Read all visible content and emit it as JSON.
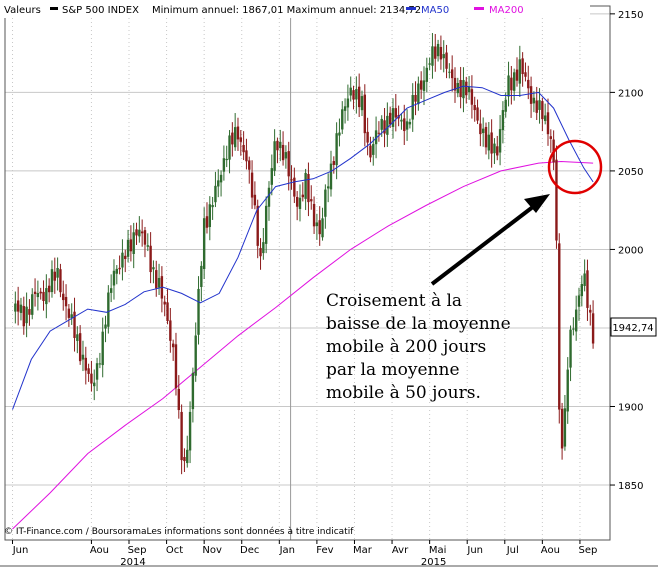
{
  "header": {
    "label": "Valeurs",
    "series_label": "S&P 500 INDEX",
    "minmax_text": "Minimum annuel: 1867,01 Maximum annuel: 2134,72",
    "ma50_label": "MA50",
    "ma200_label": "MA200"
  },
  "footer": {
    "source": "© IT-Finance.com / BoursoramaLes informations sont données à titre indicatif"
  },
  "annotation": {
    "lines": [
      "Croisement à la",
      "baisse de la moyenne",
      "mobile à 200 jours",
      "par la moyenne",
      "mobile à 50 jours."
    ]
  },
  "last_price_label": "1942,74",
  "chart_data": {
    "type": "candlestick",
    "title": "",
    "xlabel": "",
    "ylabel": "",
    "ylim": [
      1815,
      2155
    ],
    "y_ticks": [
      1850,
      1900,
      1950,
      2000,
      2050,
      2100,
      2150
    ],
    "y_tick_labels": [
      "1850",
      "1900",
      "1950",
      "2000",
      "2050",
      "2100",
      "2150"
    ],
    "x_ticks": [
      {
        "label": "Jun",
        "t": 0.0
      },
      {
        "label": "Aou",
        "t": 2.1
      },
      {
        "label": "Sep",
        "t": 3.1
      },
      {
        "label": "Oct",
        "t": 4.1
      },
      {
        "label": "Nov",
        "t": 5.1
      },
      {
        "label": "Dec",
        "t": 6.1
      },
      {
        "label": "Jan",
        "t": 7.1
      },
      {
        "label": "Fev",
        "t": 8.1
      },
      {
        "label": "Mar",
        "t": 9.1
      },
      {
        "label": "Avr",
        "t": 10.1
      },
      {
        "label": "Mai",
        "t": 11.1
      },
      {
        "label": "Jun",
        "t": 12.1
      },
      {
        "label": "Jul",
        "t": 13.1
      },
      {
        "label": "Aou",
        "t": 14.1
      },
      {
        "label": "Sep",
        "t": 15.1
      }
    ],
    "year_labels": [
      {
        "label": "2014",
        "t": 3.1
      },
      {
        "label": "2015",
        "t": 11.1
      }
    ],
    "year_divider_t": 7.4,
    "price_path": [
      {
        "t": 0.0,
        "v": 1962
      },
      {
        "t": 0.3,
        "v": 1955
      },
      {
        "t": 0.6,
        "v": 1975
      },
      {
        "t": 0.9,
        "v": 1970
      },
      {
        "t": 1.2,
        "v": 1985
      },
      {
        "t": 1.5,
        "v": 1960
      },
      {
        "t": 1.8,
        "v": 1932
      },
      {
        "t": 2.1,
        "v": 1915
      },
      {
        "t": 2.4,
        "v": 1942
      },
      {
        "t": 2.7,
        "v": 1985
      },
      {
        "t": 3.0,
        "v": 2000
      },
      {
        "t": 3.3,
        "v": 2010
      },
      {
        "t": 3.6,
        "v": 2000
      },
      {
        "t": 3.9,
        "v": 1978
      },
      {
        "t": 4.1,
        "v": 1955
      },
      {
        "t": 4.3,
        "v": 1930
      },
      {
        "t": 4.45,
        "v": 1885
      },
      {
        "t": 4.55,
        "v": 1860
      },
      {
        "t": 4.7,
        "v": 1890
      },
      {
        "t": 4.9,
        "v": 1950
      },
      {
        "t": 5.1,
        "v": 2015
      },
      {
        "t": 5.4,
        "v": 2040
      },
      {
        "t": 5.7,
        "v": 2060
      },
      {
        "t": 6.0,
        "v": 2075
      },
      {
        "t": 6.2,
        "v": 2065
      },
      {
        "t": 6.4,
        "v": 2030
      },
      {
        "t": 6.6,
        "v": 1990
      },
      {
        "t": 6.75,
        "v": 2025
      },
      {
        "t": 7.0,
        "v": 2075
      },
      {
        "t": 7.2,
        "v": 2060
      },
      {
        "t": 7.4,
        "v": 2040
      },
      {
        "t": 7.6,
        "v": 2030
      },
      {
        "t": 7.8,
        "v": 2045
      },
      {
        "t": 8.0,
        "v": 2020
      },
      {
        "t": 8.2,
        "v": 2005
      },
      {
        "t": 8.35,
        "v": 2040
      },
      {
        "t": 8.6,
        "v": 2070
      },
      {
        "t": 9.0,
        "v": 2100
      },
      {
        "t": 9.3,
        "v": 2095
      },
      {
        "t": 9.5,
        "v": 2060
      },
      {
        "t": 9.8,
        "v": 2075
      },
      {
        "t": 10.1,
        "v": 2090
      },
      {
        "t": 10.5,
        "v": 2075
      },
      {
        "t": 10.8,
        "v": 2105
      },
      {
        "t": 11.1,
        "v": 2120
      },
      {
        "t": 11.4,
        "v": 2125
      },
      {
        "t": 11.7,
        "v": 2110
      },
      {
        "t": 12.0,
        "v": 2100
      },
      {
        "t": 12.3,
        "v": 2090
      },
      {
        "t": 12.6,
        "v": 2070
      },
      {
        "t": 12.9,
        "v": 2060
      },
      {
        "t": 13.2,
        "v": 2110
      },
      {
        "t": 13.5,
        "v": 2115
      },
      {
        "t": 13.8,
        "v": 2095
      },
      {
        "t": 14.1,
        "v": 2090
      },
      {
        "t": 14.3,
        "v": 2075
      },
      {
        "t": 14.45,
        "v": 2040
      },
      {
        "t": 14.55,
        "v": 1890
      },
      {
        "t": 14.65,
        "v": 1872
      },
      {
        "t": 14.8,
        "v": 1945
      },
      {
        "t": 15.0,
        "v": 1960
      },
      {
        "t": 15.2,
        "v": 1985
      },
      {
        "t": 15.35,
        "v": 1955
      },
      {
        "t": 15.45,
        "v": 1942.74
      }
    ],
    "ma50_path": [
      {
        "t": 0.0,
        "v": 1898
      },
      {
        "t": 0.5,
        "v": 1930
      },
      {
        "t": 1.0,
        "v": 1948
      },
      {
        "t": 1.5,
        "v": 1955
      },
      {
        "t": 2.0,
        "v": 1962
      },
      {
        "t": 2.5,
        "v": 1960
      },
      {
        "t": 3.0,
        "v": 1965
      },
      {
        "t": 3.5,
        "v": 1973
      },
      {
        "t": 4.0,
        "v": 1976
      },
      {
        "t": 4.5,
        "v": 1972
      },
      {
        "t": 5.0,
        "v": 1966
      },
      {
        "t": 5.5,
        "v": 1972
      },
      {
        "t": 6.0,
        "v": 1995
      },
      {
        "t": 6.5,
        "v": 2025
      },
      {
        "t": 7.0,
        "v": 2040
      },
      {
        "t": 7.5,
        "v": 2043
      },
      {
        "t": 8.0,
        "v": 2045
      },
      {
        "t": 8.5,
        "v": 2050
      },
      {
        "t": 9.0,
        "v": 2058
      },
      {
        "t": 9.5,
        "v": 2067
      },
      {
        "t": 10.0,
        "v": 2078
      },
      {
        "t": 10.5,
        "v": 2090
      },
      {
        "t": 11.0,
        "v": 2095
      },
      {
        "t": 11.5,
        "v": 2100
      },
      {
        "t": 12.0,
        "v": 2104
      },
      {
        "t": 12.5,
        "v": 2103
      },
      {
        "t": 13.0,
        "v": 2098
      },
      {
        "t": 13.5,
        "v": 2098
      },
      {
        "t": 14.0,
        "v": 2100
      },
      {
        "t": 14.4,
        "v": 2090
      },
      {
        "t": 14.8,
        "v": 2070
      },
      {
        "t": 15.2,
        "v": 2052
      },
      {
        "t": 15.45,
        "v": 2043
      }
    ],
    "ma200_path": [
      {
        "t": 0.0,
        "v": 1822
      },
      {
        "t": 1.0,
        "v": 1845
      },
      {
        "t": 2.0,
        "v": 1870
      },
      {
        "t": 3.0,
        "v": 1888
      },
      {
        "t": 4.0,
        "v": 1905
      },
      {
        "t": 5.0,
        "v": 1925
      },
      {
        "t": 6.0,
        "v": 1945
      },
      {
        "t": 7.0,
        "v": 1963
      },
      {
        "t": 8.0,
        "v": 1982
      },
      {
        "t": 9.0,
        "v": 2000
      },
      {
        "t": 10.0,
        "v": 2015
      },
      {
        "t": 11.0,
        "v": 2028
      },
      {
        "t": 12.0,
        "v": 2040
      },
      {
        "t": 13.0,
        "v": 2050
      },
      {
        "t": 14.0,
        "v": 2055
      },
      {
        "t": 14.6,
        "v": 2056
      },
      {
        "t": 15.45,
        "v": 2055
      }
    ],
    "last_value": 1942.74,
    "colors": {
      "up": "#2f6b2f",
      "down": "#8b1a1a",
      "ma50": "#2233cc",
      "ma200": "#e011e0",
      "grid": "#c8c8c8",
      "highlight_circle": "#e00000",
      "arrow": "#000000"
    }
  }
}
